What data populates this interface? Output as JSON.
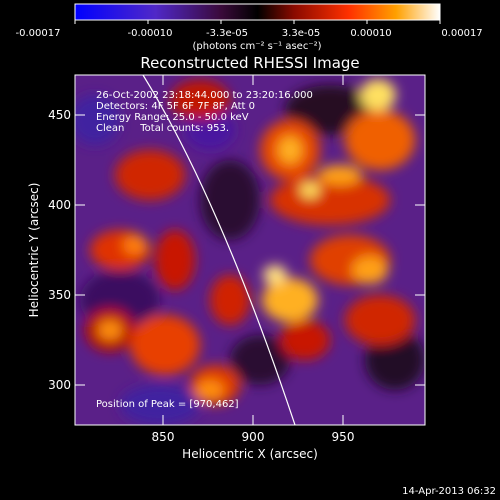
{
  "colorbar": {
    "ticks": [
      "-0.00017",
      "-0.00010",
      "-3.3e-05",
      "3.3e-05",
      "0.00010",
      "0.00017"
    ],
    "units": "(photons cm⁻² s⁻¹ asec⁻²)"
  },
  "title": "Reconstructed RHESSI Image",
  "info": {
    "line1": "26-Oct-2002 23:18:44.000 to 23:20:16.000",
    "line2": "Detectors: 4F 5F 6F 7F 8F, Att 0",
    "line3": "Energy Range: 25.0 - 50.0 keV",
    "line4": "Clean     Total counts: 953."
  },
  "peak_label": "Position of Peak = [970,462]",
  "x_axis": {
    "label": "Heliocentric X (arcsec)",
    "ticks": [
      "850",
      "900",
      "950"
    ]
  },
  "y_axis": {
    "label": "Heliocentric Y (arcsec)",
    "ticks": [
      "300",
      "350",
      "400",
      "450"
    ]
  },
  "timestamp": "14-Apr-2013 06:32"
}
